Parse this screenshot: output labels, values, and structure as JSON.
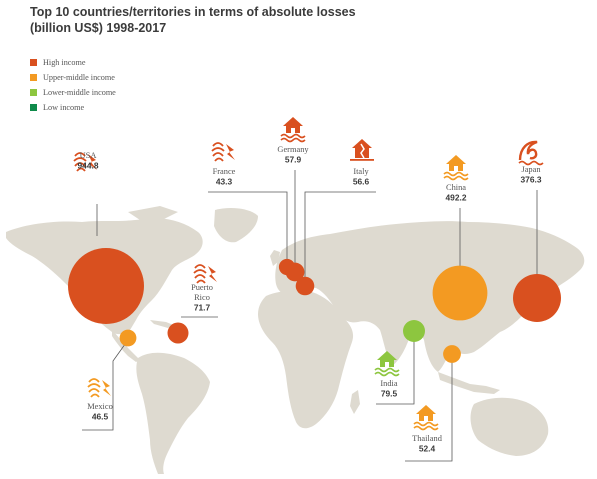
{
  "chart_data": {
    "type": "bubble-map",
    "title": [
      "Top 10 countries/territories in terms of absolute losses",
      "(billion US$) 1998-2017"
    ],
    "legend": [
      {
        "key": "high",
        "label": "High income",
        "color": "#d9501f"
      },
      {
        "key": "upper",
        "label": "Upper-middle income",
        "color": "#f39a22"
      },
      {
        "key": "lower",
        "label": "Lower-middle income",
        "color": "#8dc63f"
      },
      {
        "key": "low",
        "label": "Low income",
        "color": "#0e8a4a"
      }
    ],
    "points": [
      {
        "name": "USA",
        "value": "944.8",
        "group": "high",
        "icon": "storm-icon"
      },
      {
        "name": "Mexico",
        "value": "46.5",
        "group": "upper",
        "icon": "storm-icon"
      },
      {
        "name": "Puerto Rico",
        "value": "71.7",
        "group": "high",
        "icon": "storm-icon"
      },
      {
        "name": "France",
        "value": "43.3",
        "group": "high",
        "icon": "storm-icon"
      },
      {
        "name": "Germany",
        "value": "57.9",
        "group": "high",
        "icon": "flood-icon"
      },
      {
        "name": "Italy",
        "value": "56.6",
        "group": "high",
        "icon": "earthquake-icon"
      },
      {
        "name": "China",
        "value": "492.2",
        "group": "upper",
        "icon": "flood-icon"
      },
      {
        "name": "Japan",
        "value": "376.3",
        "group": "high",
        "icon": "tsunami-icon"
      },
      {
        "name": "India",
        "value": "79.5",
        "group": "lower",
        "icon": "flood-icon"
      },
      {
        "name": "Thailand",
        "value": "52.4",
        "group": "upper",
        "icon": "flood-icon"
      }
    ]
  }
}
